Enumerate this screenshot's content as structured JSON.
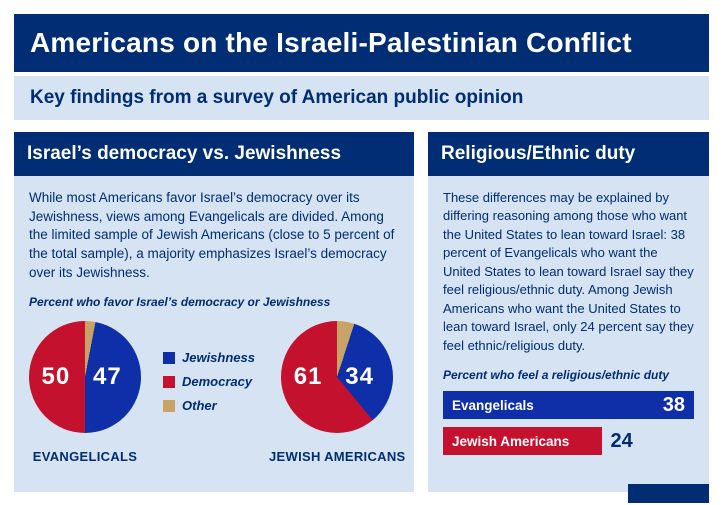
{
  "colors": {
    "navy": "#002d73",
    "blue": "#0e2fa8",
    "red": "#c4112e",
    "tan": "#c7a466",
    "panel_bg": "#d5e3f3"
  },
  "header": {
    "title": "Americans on the Israeli-Palestinian Conflict"
  },
  "subheader": {
    "text": "Key findings from a survey of American public opinion"
  },
  "left_panel": {
    "title": "Israel’s democracy vs. Jewishness",
    "body": "While most Americans favor Israel’s democracy over its Jewishness, views among Evangelicals are divided. Among the limited sample of Jewish Americans (close to 5 percent of the total sample), a majority emphasizes Israel’s democracy over its Jewishness.",
    "caption": "Percent who favor Israel’s democracy or Jewishness"
  },
  "right_panel": {
    "title": "Religious/Ethnic duty",
    "body": "These differences may be explained by differing reasoning among those who want the United States to lean toward Israel: 38 percent of Evangelicals who want the United States to lean toward Israel say they feel religious/ethnic duty. Among Jewish Americans who want the United States to lean toward Israel, only 24 percent say they feel ethnic/religious duty.",
    "caption": "Percent who feel a religious/ethnic duty"
  },
  "chart_data": [
    {
      "type": "pie",
      "title": "Percent who favor Israel’s democracy or Jewishness",
      "legend": [
        {
          "label": "Jewishness",
          "color": "#0e2fa8"
        },
        {
          "label": "Democracy",
          "color": "#c4112e"
        },
        {
          "label": "Other",
          "color": "#c7a466"
        }
      ],
      "groups": [
        {
          "name": "EVANGELICALS",
          "slices": [
            {
              "label": "Other",
              "value": 3,
              "color": "#c7a466"
            },
            {
              "label": "Jewishness",
              "value": 47,
              "color": "#0e2fa8"
            },
            {
              "label": "Democracy",
              "value": 50,
              "color": "#c4112e"
            }
          ]
        },
        {
          "name": "JEWISH AMERICANS",
          "slices": [
            {
              "label": "Other",
              "value": 5,
              "color": "#c7a466"
            },
            {
              "label": "Jewishness",
              "value": 34,
              "color": "#0e2fa8"
            },
            {
              "label": "Democracy",
              "value": 61,
              "color": "#c4112e"
            }
          ]
        }
      ]
    },
    {
      "type": "bar",
      "title": "Percent who feel a religious/ethnic duty",
      "categories": [
        "Evangelicals",
        "Jewish Americans"
      ],
      "values": [
        38,
        24
      ],
      "colors": [
        "#0e2fa8",
        "#c4112e"
      ],
      "xlim": [
        0,
        38
      ],
      "orientation": "horizontal"
    }
  ]
}
